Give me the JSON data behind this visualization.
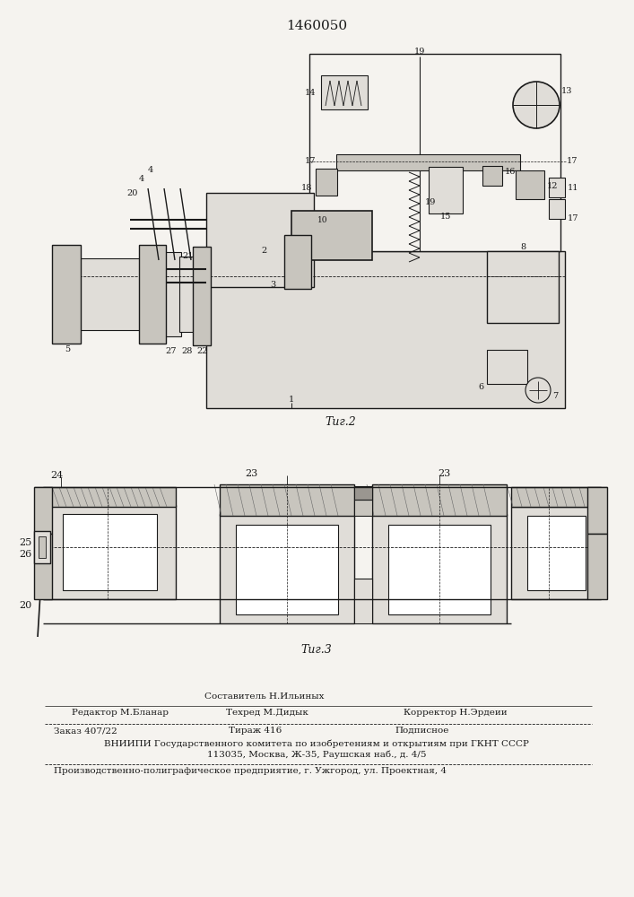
{
  "patent_number": "1460050",
  "fig2_label": "Τиг.2",
  "fig3_label": "Τиг.3",
  "footer": {
    "sestavitel": "Составитель Н.Ильиных",
    "redaktor": "Редактор М.Бланар",
    "tehred": "Техред М.Дидык",
    "korrektor": "Корректор Н.Эрдеии",
    "zakaz": "Заказ 407/22",
    "tiraж": "Тираж 416",
    "podpisnoe": "Подписное",
    "vniip": "ВНИИПИ Государственного комитета по изобретениям и открытиям при ГКНТ СССР",
    "address": "113035, Москва, Ж-35, Раушская наб., д. 4/5",
    "tipografia": "Производственно-полиграфическое предприятие, г. Ужгород, ул. Проектная, 4"
  },
  "bg_color": "#f5f3ef",
  "line_color": "#1a1a1a",
  "white": "#ffffff",
  "light_grey": "#e0ddd8",
  "mid_grey": "#c8c5be",
  "dark_grey": "#9a9690"
}
